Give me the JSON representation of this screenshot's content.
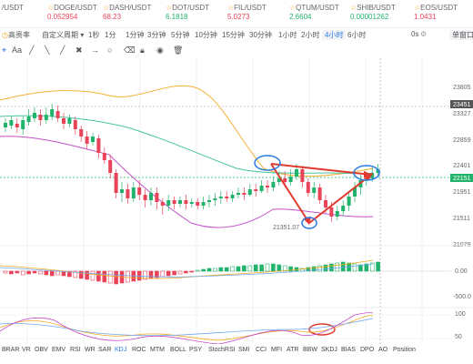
{
  "ticker": [
    {
      "symbol": "/USDT",
      "price": "",
      "dir": "up"
    },
    {
      "symbol": "DOGE/USDT",
      "price": "0.052954",
      "dir": "down"
    },
    {
      "symbol": "DASH/USDT",
      "price": "68.23",
      "dir": "down"
    },
    {
      "symbol": "DOT/USDT",
      "price": "6.1818",
      "dir": "up"
    },
    {
      "symbol": "FIL/USDT",
      "price": "5.0273",
      "dir": "down"
    },
    {
      "symbol": "QTUM/USDT",
      "price": "2.6604",
      "dir": "up"
    },
    {
      "symbol": "SHIB/USDT",
      "price": "0.00001262",
      "dir": "up"
    },
    {
      "symbol": "EOS/USDT",
      "price": "1.0431",
      "dir": "down"
    }
  ],
  "toolbar": {
    "left_btn": "高贵率",
    "custom_period": "自定义周期",
    "periods": [
      "1秒",
      "1分",
      "1分钟",
      "3分钟",
      "5分钟",
      "10分钟",
      "15分钟",
      "30分钟",
      "1小时",
      "2小时",
      "4小时",
      "6小时"
    ],
    "active_period": "4小时",
    "right_small": "0s",
    "window_btn": "单窗口"
  },
  "drawtools": [
    "Aa",
    "╱",
    "╲",
    "╱",
    "✖",
    "→",
    "○"
  ],
  "price_labels": [
    "23805",
    "23451",
    "23327",
    "22859",
    "22401",
    "22151",
    "21951",
    "21511",
    "21079",
    "0.00",
    "-500.0",
    "100",
    "50"
  ],
  "low_marker": "21351.07",
  "current_price_tag": "23451",
  "current_price_tag2": "22151",
  "indicator_tabs": [
    "BRAR",
    "VR",
    "OBV",
    "EMV",
    "RSI",
    "WR",
    "SAR",
    "KDJ",
    "ROC",
    "MTM",
    "BOLL",
    "PSY",
    "StochRSI",
    "SMI",
    "CCI",
    "MFI",
    "ATR",
    "BBW",
    "SKDJ",
    "BIAS",
    "DPO",
    "AO",
    "Position"
  ],
  "active_indicator": "KDJ",
  "colors": {
    "up": "#21b36b",
    "down": "#e94359",
    "accent": "#2a7ae2",
    "annotation": "#e03a2f"
  }
}
